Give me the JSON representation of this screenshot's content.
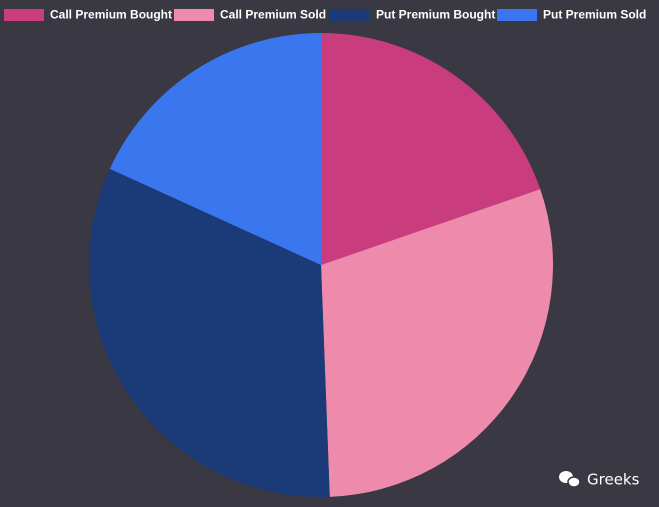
{
  "chart_data": {
    "type": "pie",
    "categories": [
      "Call Premium Bought",
      "Call Premium Sold",
      "Put Premium Bought",
      "Put Premium Sold"
    ],
    "values": [
      19.7,
      29.7,
      32.4,
      18.2
    ],
    "colors": [
      "#c93d7f",
      "#ee8bad",
      "#1b3a78",
      "#3a77ee"
    ],
    "legend": "top"
  },
  "watermark": "Greeks"
}
